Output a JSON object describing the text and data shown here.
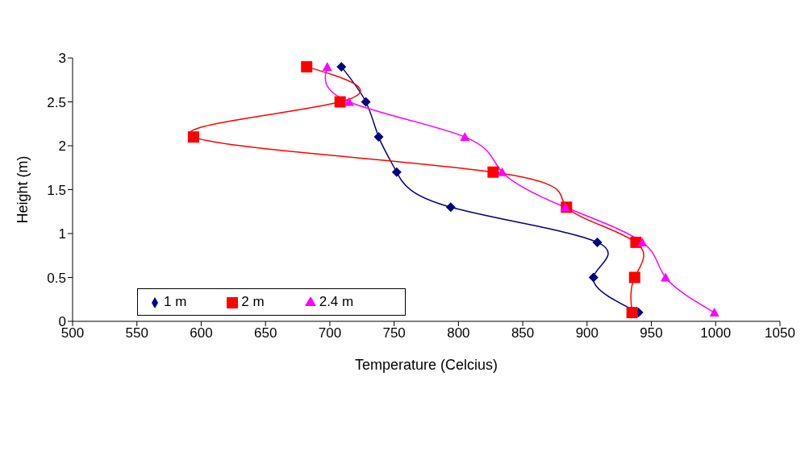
{
  "chart_data": {
    "type": "line",
    "xlabel": "Temperature (Celcius)",
    "ylabel": "Height (m)",
    "xlim": [
      500,
      1050
    ],
    "xticks": [
      500,
      550,
      600,
      650,
      700,
      750,
      800,
      850,
      900,
      950,
      1000,
      1050
    ],
    "ylim": [
      0,
      3
    ],
    "yticks": [
      0,
      0.5,
      1,
      1.5,
      2,
      2.5,
      3
    ],
    "grid": false,
    "legend": "bottom left",
    "series": [
      {
        "name": "1 m",
        "color": "#000080",
        "marker": "diamond",
        "x": [
          940,
          905,
          908,
          794,
          752,
          738,
          728,
          709
        ],
        "values": [
          0.1,
          0.5,
          0.9,
          1.3,
          1.7,
          2.1,
          2.5,
          2.9
        ]
      },
      {
        "name": "2 m",
        "color": "#ff0000",
        "marker": "square",
        "x": [
          935,
          937,
          938,
          884,
          827,
          594,
          708,
          682
        ],
        "values": [
          0.1,
          0.5,
          0.9,
          1.3,
          1.7,
          2.1,
          2.5,
          2.9
        ]
      },
      {
        "name": "2.4 m",
        "color": "#ff00ff",
        "marker": "triangle",
        "x": [
          999,
          961,
          943,
          883,
          834,
          805,
          715,
          698
        ],
        "values": [
          0.1,
          0.5,
          0.9,
          1.3,
          1.7,
          2.1,
          2.5,
          2.9
        ]
      }
    ]
  }
}
